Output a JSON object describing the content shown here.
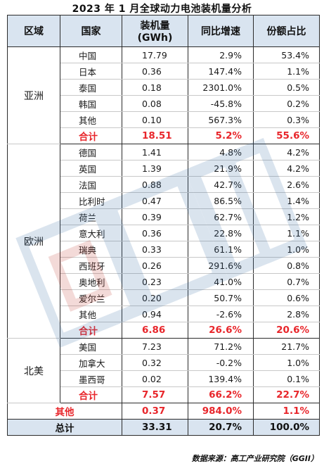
{
  "title": "2023 年 1 月全球动力电池装机量分析",
  "header": {
    "region": "区域",
    "country": "国家",
    "capacity_line1": "装机量",
    "capacity_line2": "(GWh)",
    "yoy": "同比增速",
    "share": "份额占比"
  },
  "asia": {
    "region": "亚洲",
    "rows": [
      {
        "country": "中国",
        "capacity": "17.79",
        "yoy": "2.9%",
        "share": "53.4%"
      },
      {
        "country": "日本",
        "capacity": "0.36",
        "yoy": "147.4%",
        "share": "1.1%"
      },
      {
        "country": "泰国",
        "capacity": "0.18",
        "yoy": "2301.0%",
        "share": "0.5%"
      },
      {
        "country": "韩国",
        "capacity": "0.08",
        "yoy": "-45.8%",
        "share": "0.2%"
      },
      {
        "country": "其他",
        "capacity": "0.10",
        "yoy": "567.3%",
        "share": "0.3%"
      }
    ],
    "subtotal": {
      "label": "合计",
      "capacity": "18.51",
      "yoy": "5.2%",
      "share": "55.6%"
    }
  },
  "europe": {
    "region": "欧洲",
    "rows": [
      {
        "country": "德国",
        "capacity": "1.41",
        "yoy": "4.8%",
        "share": "4.2%"
      },
      {
        "country": "英国",
        "capacity": "1.39",
        "yoy": "21.9%",
        "share": "4.2%"
      },
      {
        "country": "法国",
        "capacity": "0.88",
        "yoy": "42.7%",
        "share": "2.6%"
      },
      {
        "country": "比利时",
        "capacity": "0.47",
        "yoy": "86.5%",
        "share": "1.4%"
      },
      {
        "country": "荷兰",
        "capacity": "0.39",
        "yoy": "62.7%",
        "share": "1.2%"
      },
      {
        "country": "意大利",
        "capacity": "0.36",
        "yoy": "22.8%",
        "share": "1.1%"
      },
      {
        "country": "瑞典",
        "capacity": "0.33",
        "yoy": "61.1%",
        "share": "1.0%"
      },
      {
        "country": "西班牙",
        "capacity": "0.26",
        "yoy": "291.6%",
        "share": "0.8%"
      },
      {
        "country": "奥地利",
        "capacity": "0.23",
        "yoy": "41.0%",
        "share": "0.7%"
      },
      {
        "country": "爱尔兰",
        "capacity": "0.20",
        "yoy": "50.7%",
        "share": "0.6%"
      },
      {
        "country": "其他",
        "capacity": "0.94",
        "yoy": "-2.6%",
        "share": "2.8%"
      }
    ],
    "subtotal": {
      "label": "合计",
      "capacity": "6.86",
      "yoy": "26.6%",
      "share": "20.6%"
    }
  },
  "north_america": {
    "region": "北美",
    "rows": [
      {
        "country": "美国",
        "capacity": "7.23",
        "yoy": "71.2%",
        "share": "21.7%"
      },
      {
        "country": "加拿大",
        "capacity": "0.32",
        "yoy": "-0.2%",
        "share": "1.0%"
      },
      {
        "country": "墨西哥",
        "capacity": "0.02",
        "yoy": "139.4%",
        "share": "0.1%"
      }
    ],
    "subtotal": {
      "label": "合计",
      "capacity": "7.57",
      "yoy": "66.2%",
      "share": "22.7%"
    }
  },
  "other": {
    "label": "其他",
    "capacity": "0.37",
    "yoy": "984.0%",
    "share": "1.1%"
  },
  "total": {
    "label": "总计",
    "capacity": "33.31",
    "yoy": "20.7%",
    "share": "100.0%"
  },
  "source": "数据来源：高工产业研究院（GGII）",
  "colors": {
    "header_bg": "#d9e4f0",
    "highlight": "#e8262b",
    "watermark": "#3a6ea5"
  }
}
